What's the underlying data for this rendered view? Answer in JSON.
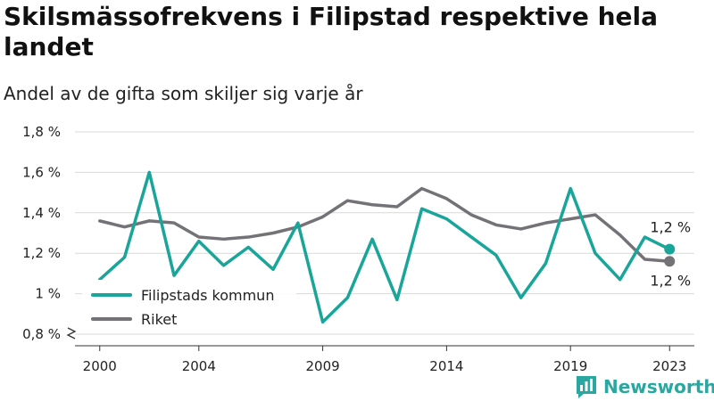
{
  "header": {
    "title": "Skilsmässofrekvens i Filipstad respektive hela landet",
    "subtitle": "Andel av de gifta som skiljer sig varje år"
  },
  "brand": {
    "name": "Newsworthy",
    "icon": "newsworthy-logo-icon",
    "color": "#2aa7a0"
  },
  "chart_data": {
    "type": "line",
    "x": [
      2000,
      2001,
      2002,
      2003,
      2004,
      2005,
      2006,
      2007,
      2008,
      2009,
      2010,
      2011,
      2012,
      2013,
      2014,
      2015,
      2016,
      2017,
      2018,
      2019,
      2020,
      2021,
      2022,
      2023
    ],
    "x_ticks": [
      2000,
      2004,
      2009,
      2014,
      2019,
      2023
    ],
    "x_tick_labels": [
      "2000",
      "2004",
      "2009",
      "2014",
      "2019",
      "2023"
    ],
    "xlim": [
      1999,
      2024
    ],
    "ylim": [
      0.8,
      1.8
    ],
    "y_ticks": [
      0.8,
      1.0,
      1.2,
      1.4,
      1.6,
      1.8
    ],
    "y_tick_labels": [
      "0,8 %",
      "1 %",
      "1,2 %",
      "1,4 %",
      "1,6 %",
      "1,8 %"
    ],
    "y_axis_break": true,
    "grid": true,
    "legend_position": "bottom-left",
    "series": [
      {
        "name": "Filipstads kommun",
        "color": "#1aa59a",
        "values": [
          1.07,
          1.18,
          1.6,
          1.09,
          1.26,
          1.14,
          1.23,
          1.12,
          1.35,
          0.86,
          0.98,
          1.27,
          0.97,
          1.42,
          1.37,
          1.28,
          1.19,
          0.98,
          1.15,
          1.52,
          1.2,
          1.07,
          1.28,
          1.22
        ],
        "end_label": "1,2 %"
      },
      {
        "name": "Riket",
        "color": "#747276",
        "values": [
          1.36,
          1.33,
          1.36,
          1.35,
          1.28,
          1.27,
          1.28,
          1.3,
          1.33,
          1.38,
          1.46,
          1.44,
          1.43,
          1.52,
          1.47,
          1.39,
          1.34,
          1.32,
          1.35,
          1.37,
          1.39,
          1.29,
          1.17,
          1.16
        ],
        "end_label": "1,2 %"
      }
    ]
  }
}
